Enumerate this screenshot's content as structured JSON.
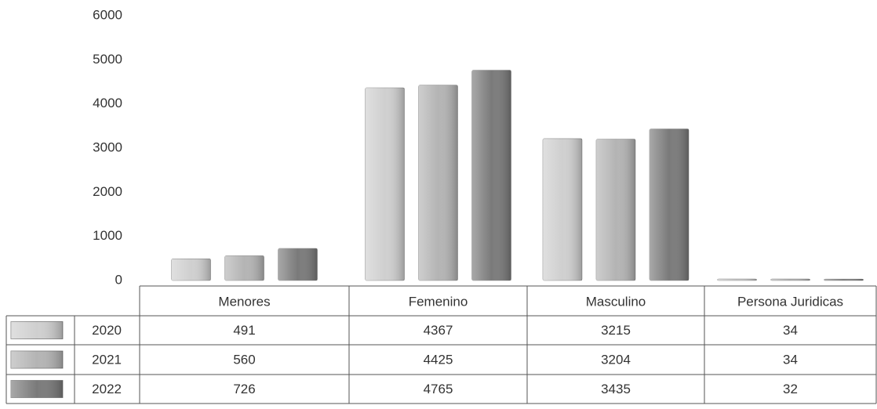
{
  "chart_data": {
    "type": "bar",
    "categories": [
      "Menores",
      "Femenino",
      "Masculino",
      "Persona Juridicas"
    ],
    "series": [
      {
        "name": "2020",
        "color": "#cfcfcf",
        "values": [
          491,
          4367,
          3215,
          34
        ]
      },
      {
        "name": "2021",
        "color": "#b4b4b4",
        "values": [
          560,
          4425,
          3204,
          34
        ]
      },
      {
        "name": "2022",
        "color": "#7a7a7a",
        "values": [
          726,
          4765,
          3435,
          32
        ]
      }
    ],
    "ylim": [
      0,
      6000
    ],
    "yticks": [
      0,
      1000,
      2000,
      3000,
      4000,
      5000,
      6000
    ],
    "grid": false
  }
}
